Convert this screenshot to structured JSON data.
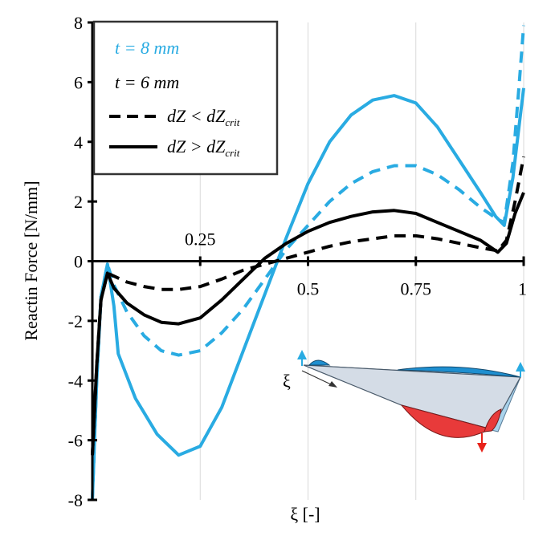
{
  "chart_data": {
    "type": "line",
    "xlabel": "ξ [-]",
    "ylabel": "Reactin Force [N/mm]",
    "xlim": [
      0,
      1
    ],
    "ylim": [
      -8,
      8
    ],
    "x_ticks": [
      {
        "value": 0.25,
        "label": "0.25"
      },
      {
        "value": 0.5,
        "label": "0.5"
      },
      {
        "value": 0.75,
        "label": "0.75"
      },
      {
        "value": 1,
        "label": "1"
      }
    ],
    "y_ticks": [
      {
        "value": 8,
        "label": "8"
      },
      {
        "value": 6,
        "label": "6"
      },
      {
        "value": 4,
        "label": "4"
      },
      {
        "value": 2,
        "label": "2"
      },
      {
        "value": 0,
        "label": "0"
      },
      {
        "value": -2,
        "label": "-2"
      },
      {
        "value": -4,
        "label": "-4"
      },
      {
        "value": -6,
        "label": "-6"
      },
      {
        "value": -8,
        "label": "-8"
      }
    ],
    "legend": {
      "placement": "top-left",
      "entries": [
        {
          "text": "t = 8 mm",
          "color": "#29ABE2"
        },
        {
          "text": "t = 6 mm",
          "color": "#000000"
        },
        {
          "text": "dZ < dZ",
          "sub": "crit",
          "style": "dashed"
        },
        {
          "text": "dZ > dZ",
          "sub": "crit",
          "style": "solid"
        }
      ]
    },
    "series": [
      {
        "thickness": "t = 8 mm",
        "condition": "dZ > dZcrit",
        "color": "#29ABE2",
        "style": "solid",
        "points": [
          [
            0.0,
            -8
          ],
          [
            0.01,
            -4
          ],
          [
            0.02,
            -1.2
          ],
          [
            0.035,
            -0.1
          ],
          [
            0.05,
            -1.5
          ],
          [
            0.06,
            -3.1
          ],
          [
            0.1,
            -4.6
          ],
          [
            0.15,
            -5.8
          ],
          [
            0.2,
            -6.5
          ],
          [
            0.25,
            -6.2
          ],
          [
            0.3,
            -4.9
          ],
          [
            0.35,
            -3.0
          ],
          [
            0.4,
            -1.1
          ],
          [
            0.45,
            0.8
          ],
          [
            0.5,
            2.6
          ],
          [
            0.55,
            4.0
          ],
          [
            0.6,
            4.9
          ],
          [
            0.65,
            5.4
          ],
          [
            0.7,
            5.55
          ],
          [
            0.75,
            5.3
          ],
          [
            0.8,
            4.5
          ],
          [
            0.85,
            3.4
          ],
          [
            0.9,
            2.3
          ],
          [
            0.935,
            1.5
          ],
          [
            0.955,
            1.2
          ],
          [
            0.975,
            2.8
          ],
          [
            0.99,
            4.6
          ],
          [
            1.0,
            5.8
          ]
        ]
      },
      {
        "thickness": "t = 8 mm",
        "condition": "dZ < dZcrit",
        "color": "#29ABE2",
        "style": "dashed",
        "points": [
          [
            0.0,
            -8
          ],
          [
            0.01,
            -4
          ],
          [
            0.02,
            -1.2
          ],
          [
            0.035,
            -0.1
          ],
          [
            0.05,
            -0.8
          ],
          [
            0.08,
            -1.7
          ],
          [
            0.12,
            -2.5
          ],
          [
            0.16,
            -3.0
          ],
          [
            0.2,
            -3.15
          ],
          [
            0.25,
            -3.0
          ],
          [
            0.3,
            -2.4
          ],
          [
            0.35,
            -1.6
          ],
          [
            0.4,
            -0.6
          ],
          [
            0.45,
            0.4
          ],
          [
            0.5,
            1.2
          ],
          [
            0.55,
            2.0
          ],
          [
            0.6,
            2.6
          ],
          [
            0.65,
            3.0
          ],
          [
            0.7,
            3.2
          ],
          [
            0.75,
            3.2
          ],
          [
            0.8,
            2.9
          ],
          [
            0.85,
            2.4
          ],
          [
            0.9,
            1.8
          ],
          [
            0.94,
            1.4
          ],
          [
            0.955,
            1.3
          ],
          [
            0.975,
            3.3
          ],
          [
            0.99,
            6.0
          ],
          [
            1.0,
            7.9
          ]
        ]
      },
      {
        "thickness": "t = 6 mm",
        "condition": "dZ > dZcrit",
        "color": "#000000",
        "style": "solid",
        "points": [
          [
            0.0,
            -6.5
          ],
          [
            0.01,
            -3.5
          ],
          [
            0.02,
            -1.3
          ],
          [
            0.035,
            -0.4
          ],
          [
            0.05,
            -0.9
          ],
          [
            0.08,
            -1.4
          ],
          [
            0.12,
            -1.8
          ],
          [
            0.16,
            -2.05
          ],
          [
            0.2,
            -2.1
          ],
          [
            0.25,
            -1.9
          ],
          [
            0.3,
            -1.3
          ],
          [
            0.35,
            -0.6
          ],
          [
            0.4,
            0.1
          ],
          [
            0.45,
            0.6
          ],
          [
            0.5,
            1.0
          ],
          [
            0.55,
            1.3
          ],
          [
            0.6,
            1.5
          ],
          [
            0.65,
            1.65
          ],
          [
            0.7,
            1.7
          ],
          [
            0.75,
            1.6
          ],
          [
            0.8,
            1.3
          ],
          [
            0.85,
            1.0
          ],
          [
            0.9,
            0.7
          ],
          [
            0.94,
            0.3
          ],
          [
            0.96,
            0.6
          ],
          [
            0.98,
            1.6
          ],
          [
            1.0,
            2.3
          ]
        ]
      },
      {
        "thickness": "t = 6 mm",
        "condition": "dZ < dZcrit",
        "color": "#000000",
        "style": "dashed",
        "points": [
          [
            0.0,
            -6.5
          ],
          [
            0.01,
            -3.5
          ],
          [
            0.02,
            -1.3
          ],
          [
            0.035,
            -0.4
          ],
          [
            0.05,
            -0.5
          ],
          [
            0.08,
            -0.7
          ],
          [
            0.12,
            -0.85
          ],
          [
            0.16,
            -0.95
          ],
          [
            0.2,
            -0.95
          ],
          [
            0.25,
            -0.85
          ],
          [
            0.3,
            -0.6
          ],
          [
            0.35,
            -0.3
          ],
          [
            0.4,
            -0.1
          ],
          [
            0.45,
            0.1
          ],
          [
            0.5,
            0.3
          ],
          [
            0.55,
            0.5
          ],
          [
            0.6,
            0.65
          ],
          [
            0.65,
            0.75
          ],
          [
            0.7,
            0.85
          ],
          [
            0.75,
            0.85
          ],
          [
            0.8,
            0.75
          ],
          [
            0.85,
            0.6
          ],
          [
            0.9,
            0.45
          ],
          [
            0.94,
            0.35
          ],
          [
            0.96,
            0.7
          ],
          [
            0.98,
            2.0
          ],
          [
            1.0,
            3.5
          ]
        ]
      }
    ],
    "inset": {
      "label": "ξ",
      "colors": {
        "plate": "#d4dce6",
        "lower": "#a9d3ec",
        "top_bulge": "#1e8fd0",
        "red_bulge": "#e83a3a",
        "arrow_up": "#29ABE2",
        "arrow_down": "#e8231a"
      }
    }
  }
}
